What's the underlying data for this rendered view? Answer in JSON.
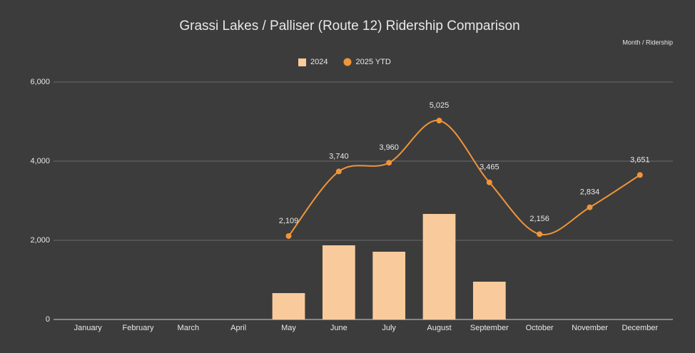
{
  "chart_data": {
    "type": "bar-line",
    "title": "Grassi Lakes / Palliser (Route 12) Ridership Comparison",
    "subtitle": "Month / Ridership",
    "categories": [
      "January",
      "February",
      "March",
      "April",
      "May",
      "June",
      "July",
      "August",
      "September",
      "October",
      "November",
      "December"
    ],
    "series": [
      {
        "name": "2024",
        "type": "bar",
        "color": "#f9cb9c",
        "values": [
          null,
          null,
          null,
          null,
          667,
          1874,
          1712,
          2667,
          955,
          null,
          null,
          null
        ]
      },
      {
        "name": "2025 YTD",
        "type": "line",
        "color": "#f0953a",
        "smooth": true,
        "values": [
          null,
          null,
          null,
          null,
          2109,
          3740,
          3960,
          5025,
          3465,
          2156,
          2834,
          3651
        ],
        "value_labels": [
          null,
          null,
          null,
          null,
          "2,109",
          "3,740",
          "3,960",
          "5,025",
          "3,465",
          "2,156",
          "2,834",
          "3,651"
        ]
      }
    ],
    "ylim": [
      0,
      6000
    ],
    "yticks": [
      0,
      {
        "value": 2000,
        "label": "2,000"
      },
      {
        "value": 4000,
        "label": "4,000"
      },
      {
        "value": 6000,
        "label": "6,000"
      }
    ],
    "grid": true,
    "legend": "top"
  }
}
